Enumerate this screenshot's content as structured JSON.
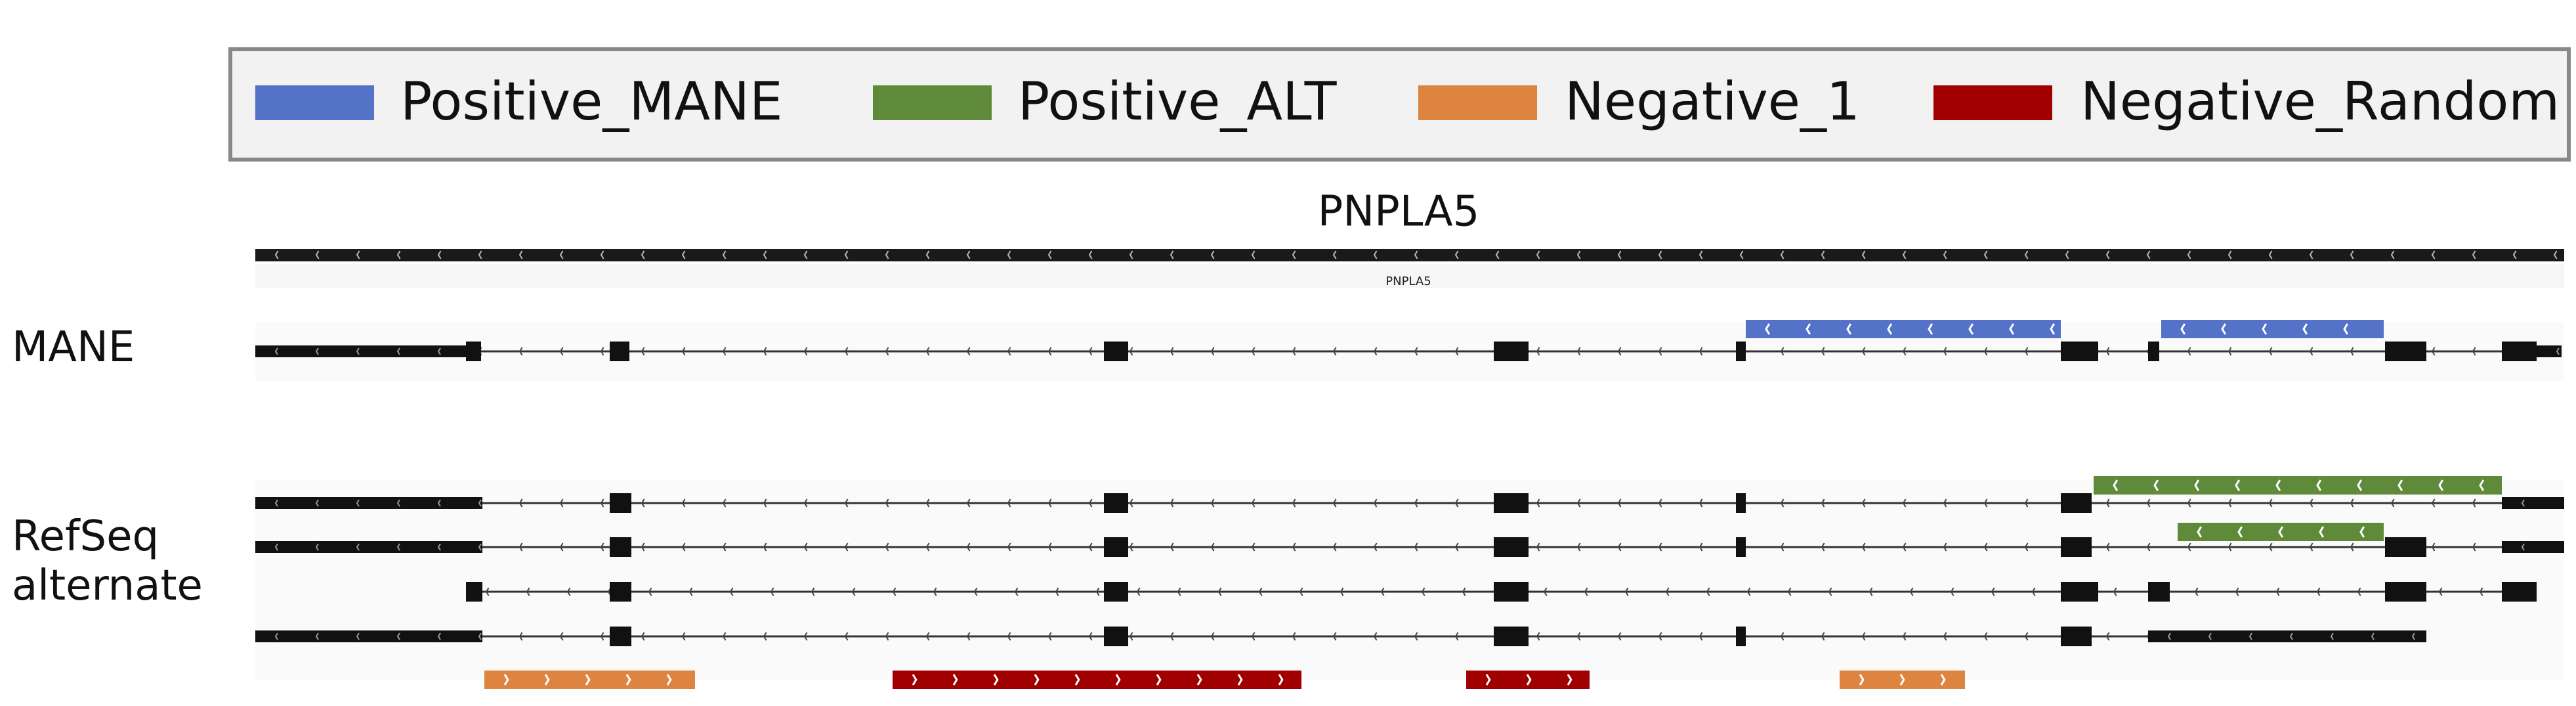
{
  "legend": [
    {
      "label": "Positive_MANE",
      "color": "#5472c8"
    },
    {
      "label": "Positive_ALT",
      "color": "#5f8a3a"
    },
    {
      "label": "Negative_1",
      "color": "#dd8440"
    },
    {
      "label": "Negative_Random",
      "color": "#a00000"
    }
  ],
  "gene": {
    "title": "PNPLA5",
    "small_label": "PNPLA5"
  },
  "tracks": [
    {
      "label": "MANE"
    },
    {
      "label": "RefSeq alternate"
    }
  ]
}
